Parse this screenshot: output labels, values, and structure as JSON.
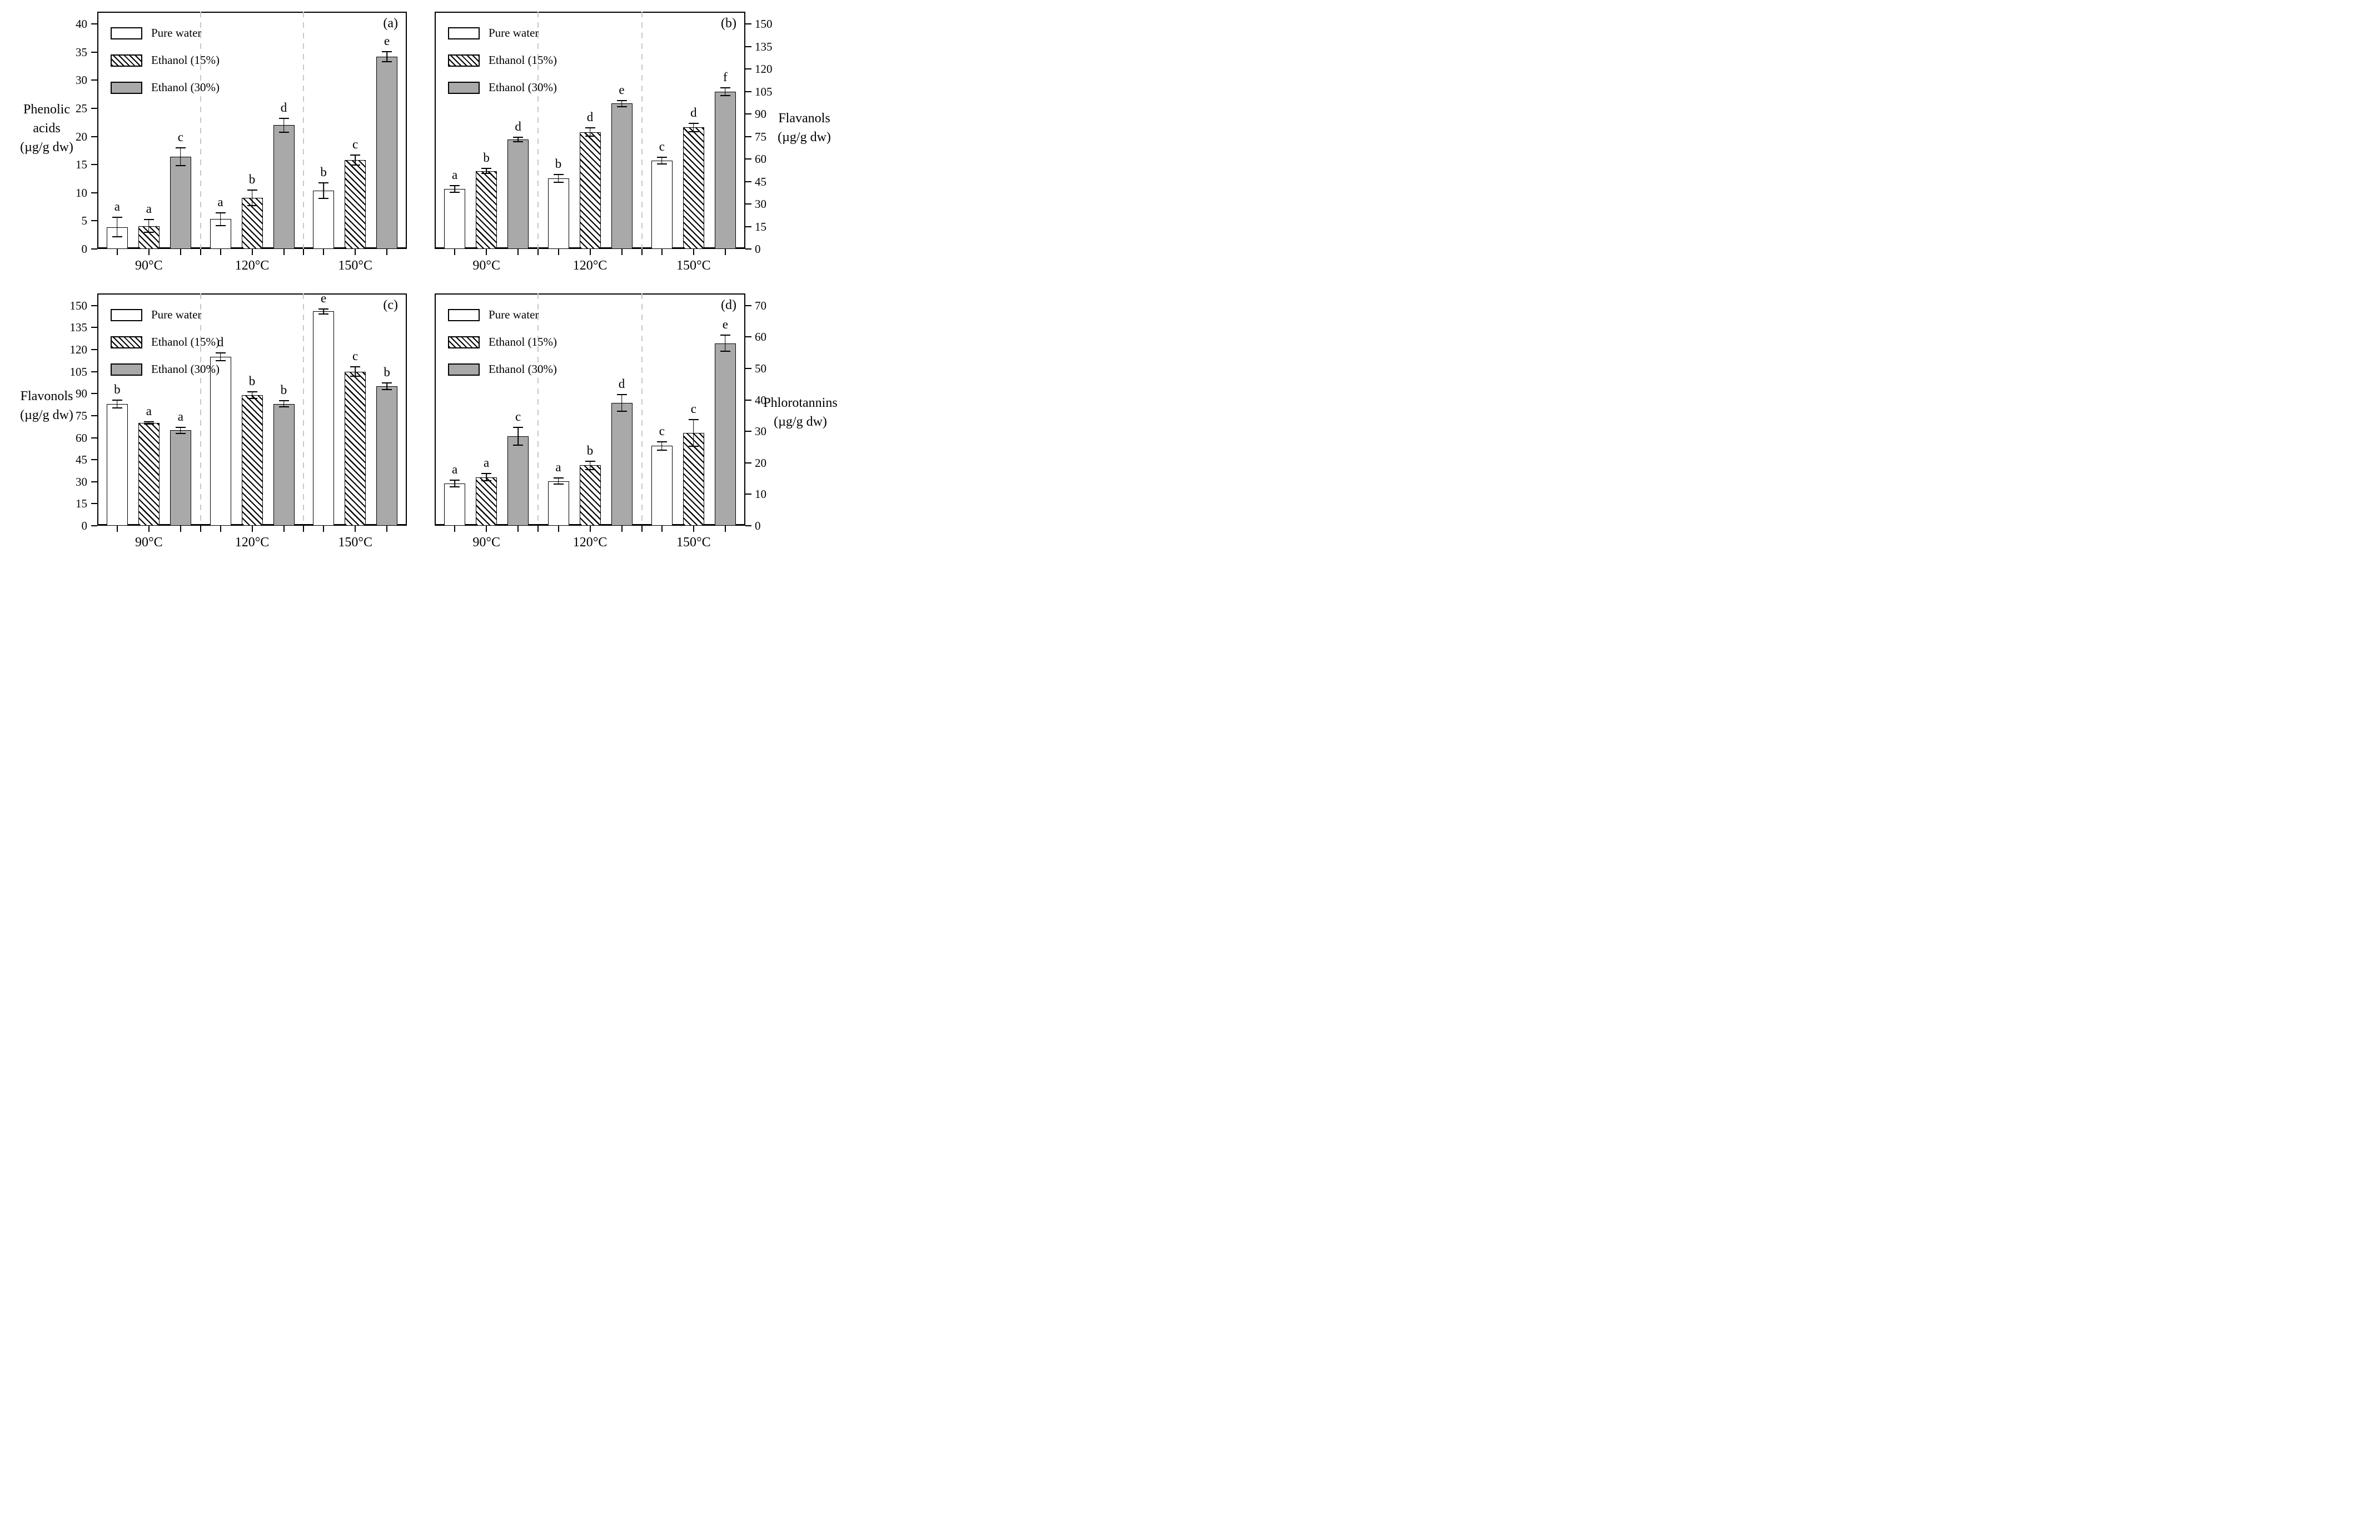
{
  "colors": {
    "bar_gray": "#a9a9a9",
    "hatch_line": "#000000",
    "separator_dash": "#c8c8c8",
    "axis": "#000000",
    "background": "#ffffff"
  },
  "chart_data": [
    {
      "type": "bar",
      "panel_label": "(a)",
      "ylabel_lines": [
        "Phenolic",
        "acids",
        "(µg/g dw)"
      ],
      "axis_side": "left",
      "ylim": [
        0,
        40
      ],
      "yticks": [
        0,
        5,
        10,
        15,
        20,
        25,
        30,
        35,
        40
      ],
      "categories": [
        "90°C",
        "120°C",
        "150°C"
      ],
      "grid": "off",
      "legend_position": "top-left",
      "group_separators": "dashed",
      "series": [
        {
          "name": "Pure water",
          "fill": "white",
          "values": [
            3.9,
            5.3,
            10.4
          ],
          "errors": [
            1.8,
            1.2,
            1.5
          ],
          "letters": [
            "a",
            "a",
            "b"
          ]
        },
        {
          "name": "Ethanol (15%)",
          "fill": "hatch",
          "values": [
            4.1,
            9.1,
            15.8
          ],
          "errors": [
            1.2,
            1.5,
            1.0
          ],
          "letters": [
            "a",
            "b",
            "c"
          ]
        },
        {
          "name": "Ethanol (30%)",
          "fill": "gray",
          "values": [
            16.4,
            22.0,
            34.2
          ],
          "errors": [
            1.7,
            1.3,
            1.0
          ],
          "letters": [
            "c",
            "d",
            "e"
          ]
        }
      ]
    },
    {
      "type": "bar",
      "panel_label": "(b)",
      "ylabel_lines": [
        "Flavanols",
        "(µg/g dw)"
      ],
      "axis_side": "right",
      "ylim": [
        0,
        150
      ],
      "yticks": [
        0,
        15,
        30,
        45,
        60,
        75,
        90,
        105,
        120,
        135,
        150
      ],
      "categories": [
        "90°C",
        "120°C",
        "150°C"
      ],
      "grid": "off",
      "legend_position": "top-left",
      "group_separators": "dashed",
      "series": [
        {
          "name": "Pure water",
          "fill": "white",
          "values": [
            40,
            47,
            59
          ],
          "errors": [
            2.5,
            3.0,
            2.5
          ],
          "letters": [
            "a",
            "b",
            "c"
          ]
        },
        {
          "name": "Ethanol (15%)",
          "fill": "hatch",
          "values": [
            52,
            78,
            81
          ],
          "errors": [
            2.0,
            3.0,
            3.0
          ],
          "letters": [
            "b",
            "d",
            "d"
          ]
        },
        {
          "name": "Ethanol (30%)",
          "fill": "gray",
          "values": [
            73,
            97,
            105
          ],
          "errors": [
            2.0,
            2.5,
            3.0
          ],
          "letters": [
            "d",
            "e",
            "f"
          ]
        }
      ]
    },
    {
      "type": "bar",
      "panel_label": "(c)",
      "ylabel_lines": [
        "Flavonols",
        "(µg/g dw)"
      ],
      "axis_side": "left",
      "ylim": [
        0,
        150
      ],
      "yticks": [
        0,
        15,
        30,
        45,
        60,
        75,
        90,
        105,
        120,
        135,
        150
      ],
      "categories": [
        "90°C",
        "120°C",
        "150°C"
      ],
      "grid": "off",
      "legend_position": "top-left",
      "group_separators": "dashed",
      "series": [
        {
          "name": "Pure water",
          "fill": "white",
          "values": [
            83,
            115,
            146
          ],
          "errors": [
            3.0,
            3.0,
            2.0
          ],
          "letters": [
            "b",
            "d",
            "e"
          ]
        },
        {
          "name": "Ethanol (15%)",
          "fill": "hatch",
          "values": [
            70,
            89,
            105
          ],
          "errors": [
            1.0,
            2.5,
            3.5
          ],
          "letters": [
            "a",
            "b",
            "c"
          ]
        },
        {
          "name": "Ethanol (30%)",
          "fill": "gray",
          "values": [
            65,
            83,
            95
          ],
          "errors": [
            2.5,
            2.5,
            2.5
          ],
          "letters": [
            "a",
            "b",
            "b"
          ]
        }
      ]
    },
    {
      "type": "bar",
      "panel_label": "(d)",
      "ylabel_lines": [
        "Phlorotannins",
        "(µg/g dw)"
      ],
      "axis_side": "right",
      "ylim": [
        0,
        70
      ],
      "yticks": [
        0,
        10,
        20,
        30,
        40,
        50,
        60,
        70
      ],
      "categories": [
        "90°C",
        "120°C",
        "150°C"
      ],
      "grid": "off",
      "legend_position": "top-left",
      "group_separators": "dashed",
      "series": [
        {
          "name": "Pure water",
          "fill": "white",
          "values": [
            13.4,
            14.2,
            25.4
          ],
          "errors": [
            1.2,
            1.2,
            1.5
          ],
          "letters": [
            "a",
            "a",
            "c"
          ]
        },
        {
          "name": "Ethanol (15%)",
          "fill": "hatch",
          "values": [
            15.4,
            19.2,
            29.5
          ],
          "errors": [
            1.3,
            1.5,
            4.4
          ],
          "letters": [
            "a",
            "b",
            "c"
          ]
        },
        {
          "name": "Ethanol (30%)",
          "fill": "gray",
          "values": [
            28.5,
            39.0,
            58.0
          ],
          "errors": [
            3.0,
            2.8,
            2.7
          ],
          "letters": [
            "c",
            "d",
            "e"
          ]
        }
      ]
    }
  ]
}
